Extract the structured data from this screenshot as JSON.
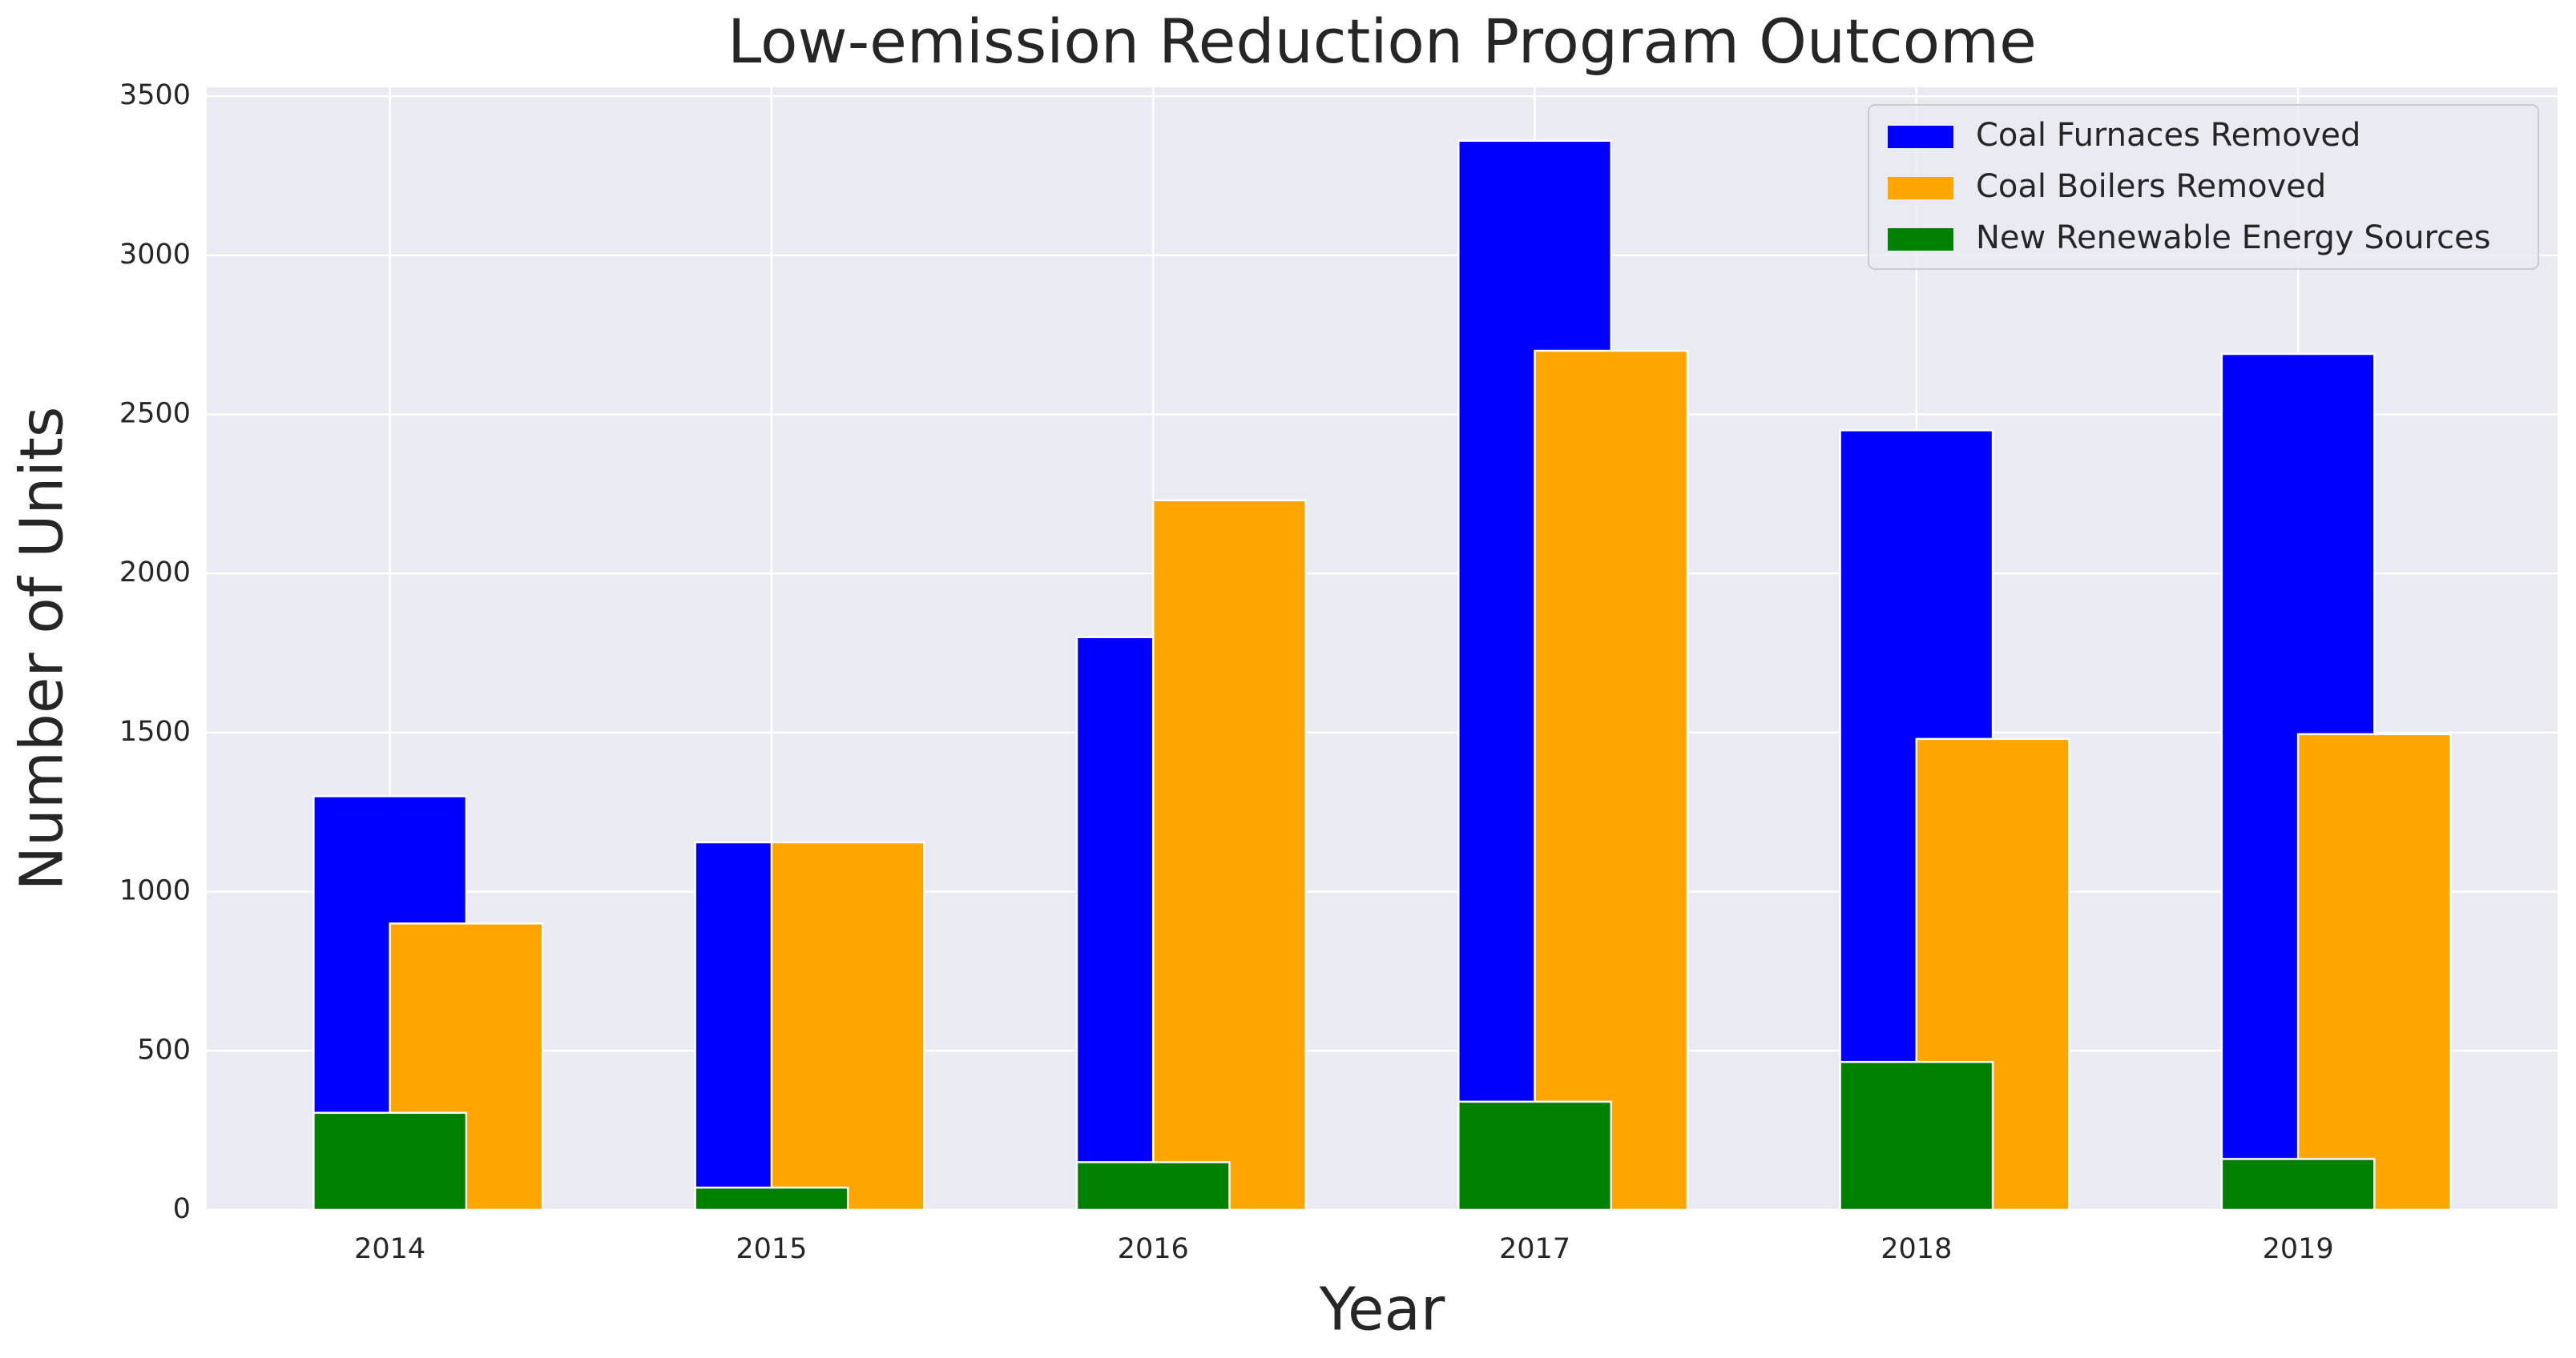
{
  "chart_data": {
    "type": "bar",
    "title": "Low-emission Reduction Program Outcome",
    "x_label": "Year",
    "y_label": "Number of Units",
    "x": [
      2014,
      2015,
      2016,
      2017,
      2018,
      2019
    ],
    "series": [
      {
        "name": "Coal Furnaces Removed",
        "color": "#0000ff",
        "values": [
          1300,
          1155,
          1800,
          3360,
          2450,
          2690
        ]
      },
      {
        "name": "Coal Boilers Removed",
        "color": "#ffa500",
        "values": [
          900,
          1155,
          2230,
          2700,
          1480,
          1495
        ]
      },
      {
        "name": "New Renewable Energy Sources",
        "color": "#008000",
        "values": [
          305,
          70,
          150,
          340,
          465,
          160
        ]
      }
    ],
    "xlim": [
      2013.52,
      2019.68
    ],
    "xticks": [
      2014,
      2015,
      2016,
      2017,
      2018,
      2019
    ],
    "ylim": [
      0,
      3528
    ],
    "yticks": [
      0,
      500,
      1000,
      1500,
      2000,
      2500,
      3000,
      3500
    ],
    "grid": true,
    "legend": "upper right"
  }
}
